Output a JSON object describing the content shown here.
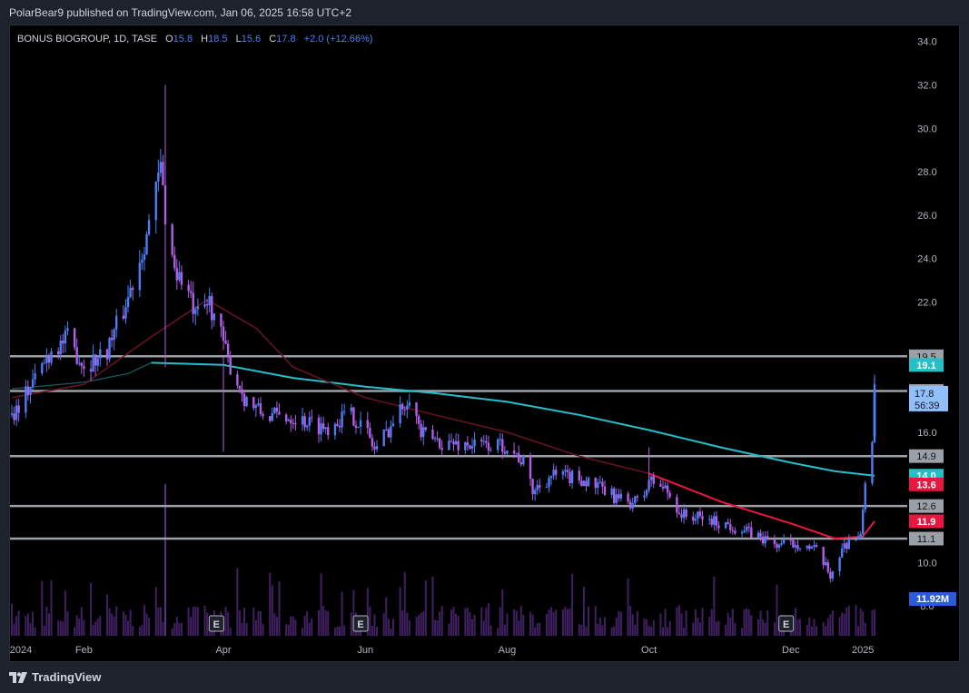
{
  "header": {
    "published": "PolarBear9 published on TradingView.com, Jan 06, 2025 16:58 UTC+2"
  },
  "footer": {
    "brand": "TradingView",
    "logo_icon": "tradingview-logo-icon"
  },
  "legend": {
    "symbol": "BONUS BIOGROUP, 1D, TASE",
    "o_label": "O",
    "o": "15.8",
    "h_label": "H",
    "h": "18.5",
    "l_label": "L",
    "l": "15.6",
    "c_label": "C",
    "c": "17.8",
    "change": "+2.0 (+12.66%)"
  },
  "colors": {
    "background": "#000000",
    "up": "#4c7ef6",
    "down": "#b25ee6",
    "ma_short": "#e8173f",
    "ma_long": "#26bfc8",
    "level": "#9aa0a6",
    "price_tag": "#90bff9",
    "volume": "#5a2f8a"
  },
  "chart_data": {
    "type": "candlestick",
    "symbol": "BONUS BIOGROUP",
    "interval": "1D",
    "exchange": "TASE",
    "ylim": [
      8,
      35
    ],
    "y_ticks": [
      "34.0",
      "32.0",
      "30.0",
      "28.0",
      "26.0",
      "24.0",
      "22.0",
      "16.0",
      "10.0",
      "8.0"
    ],
    "x_ticks": [
      {
        "label": "2024",
        "date": "2024-01-01"
      },
      {
        "label": "Feb",
        "date": "2024-02-01"
      },
      {
        "label": "Apr",
        "date": "2024-04-01"
      },
      {
        "label": "Jun",
        "date": "2024-06-01"
      },
      {
        "label": "Aug",
        "date": "2024-08-01"
      },
      {
        "label": "Oct",
        "date": "2024-10-01"
      },
      {
        "label": "Dec",
        "date": "2024-12-01"
      },
      {
        "label": "2025",
        "date": "2025-01-01"
      }
    ],
    "earnings_markers": [
      {
        "label": "E",
        "date": "2024-03-29"
      },
      {
        "label": "E",
        "date": "2024-05-30"
      },
      {
        "label": "E",
        "date": "2024-11-29"
      }
    ],
    "horizontal_levels": [
      19.5,
      17.9,
      14.9,
      12.6,
      11.1
    ],
    "level_labels": [
      "19.5",
      "17.9",
      "14.9",
      "12.6",
      "11.1"
    ],
    "price_tags": [
      {
        "label": "19.1",
        "value": 19.1,
        "color": "#26bfc8"
      },
      {
        "label": "14.0",
        "value": 14.0,
        "color": "#26bfc8"
      },
      {
        "label": "13.6",
        "value": 13.6,
        "color": "#e8173f"
      },
      {
        "label": "11.9",
        "value": 11.9,
        "color": "#e8173f"
      }
    ],
    "last_price": {
      "label": "17.8",
      "countdown": "56:39",
      "value": 17.8
    },
    "volume_tag": {
      "label": "11.92M"
    },
    "price_path": [
      {
        "date": "2024-01-01",
        "close": 16.8
      },
      {
        "date": "2024-01-10",
        "close": 18.3
      },
      {
        "date": "2024-01-18",
        "close": 19.8
      },
      {
        "date": "2024-01-25",
        "close": 20.3
      },
      {
        "date": "2024-02-01",
        "close": 19.1
      },
      {
        "date": "2024-02-10",
        "close": 19.6
      },
      {
        "date": "2024-02-18",
        "close": 21.6
      },
      {
        "date": "2024-02-24",
        "close": 23.6
      },
      {
        "date": "2024-03-01",
        "close": 26.0
      },
      {
        "date": "2024-03-05",
        "close": 28.2
      },
      {
        "date": "2024-03-08",
        "close": 25.0
      },
      {
        "date": "2024-03-12",
        "close": 23.3
      },
      {
        "date": "2024-03-16",
        "close": 22.8
      },
      {
        "date": "2024-03-20",
        "close": 21.2
      },
      {
        "date": "2024-03-26",
        "close": 22.0
      },
      {
        "date": "2024-03-30",
        "close": 20.8
      },
      {
        "date": "2024-04-03",
        "close": 19.3
      },
      {
        "date": "2024-04-10",
        "close": 17.6
      },
      {
        "date": "2024-04-18",
        "close": 16.8
      },
      {
        "date": "2024-05-01",
        "close": 16.7
      },
      {
        "date": "2024-05-15",
        "close": 16.2
      },
      {
        "date": "2024-05-25",
        "close": 16.9
      },
      {
        "date": "2024-06-01",
        "close": 16.2
      },
      {
        "date": "2024-06-05",
        "close": 15.2
      },
      {
        "date": "2024-06-15",
        "close": 16.8
      },
      {
        "date": "2024-06-20",
        "close": 17.8
      },
      {
        "date": "2024-06-25",
        "close": 15.9
      },
      {
        "date": "2024-07-05",
        "close": 15.5
      },
      {
        "date": "2024-07-20",
        "close": 15.4
      },
      {
        "date": "2024-08-01",
        "close": 15.4
      },
      {
        "date": "2024-08-08",
        "close": 14.6
      },
      {
        "date": "2024-08-12",
        "close": 13.3
      },
      {
        "date": "2024-08-20",
        "close": 14.0
      },
      {
        "date": "2024-09-01",
        "close": 13.9
      },
      {
        "date": "2024-09-10",
        "close": 13.4
      },
      {
        "date": "2024-09-20",
        "close": 12.8
      },
      {
        "date": "2024-09-28",
        "close": 12.8
      },
      {
        "date": "2024-10-01",
        "close": 13.8
      },
      {
        "date": "2024-10-08",
        "close": 13.4
      },
      {
        "date": "2024-10-15",
        "close": 12.2
      },
      {
        "date": "2024-10-25",
        "close": 12.0
      },
      {
        "date": "2024-11-05",
        "close": 11.7
      },
      {
        "date": "2024-11-15",
        "close": 11.3
      },
      {
        "date": "2024-11-25",
        "close": 10.8
      },
      {
        "date": "2024-12-05",
        "close": 10.9
      },
      {
        "date": "2024-12-12",
        "close": 10.5
      },
      {
        "date": "2024-12-18",
        "close": 9.4
      },
      {
        "date": "2024-12-23",
        "close": 10.6
      },
      {
        "date": "2024-12-27",
        "close": 11.2
      },
      {
        "date": "2024-12-31",
        "close": 11.1
      },
      {
        "date": "2025-01-02",
        "close": 13.8
      },
      {
        "date": "2025-01-05",
        "close": 15.8
      },
      {
        "date": "2025-01-06",
        "close": 17.8
      }
    ],
    "ma_long_path": [
      {
        "date": "2024-03-01",
        "value": 19.2
      },
      {
        "date": "2024-04-01",
        "value": 19.1
      },
      {
        "date": "2024-05-01",
        "value": 18.5
      },
      {
        "date": "2024-06-01",
        "value": 18.1
      },
      {
        "date": "2024-07-01",
        "value": 17.8
      },
      {
        "date": "2024-08-01",
        "value": 17.4
      },
      {
        "date": "2024-09-01",
        "value": 16.8
      },
      {
        "date": "2024-10-01",
        "value": 16.1
      },
      {
        "date": "2024-11-01",
        "value": 15.3
      },
      {
        "date": "2024-12-01",
        "value": 14.6
      },
      {
        "date": "2024-12-20",
        "value": 14.2
      },
      {
        "date": "2025-01-06",
        "value": 14.0
      }
    ],
    "ma_short_path": [
      {
        "date": "2024-01-01",
        "value": 17.6
      },
      {
        "date": "2024-02-01",
        "value": 18.2
      },
      {
        "date": "2024-03-01",
        "value": 20.4
      },
      {
        "date": "2024-03-25",
        "value": 22.1
      },
      {
        "date": "2024-04-15",
        "value": 20.8
      },
      {
        "date": "2024-05-01",
        "value": 19.0
      },
      {
        "date": "2024-06-01",
        "value": 17.6
      },
      {
        "date": "2024-07-01",
        "value": 16.8
      },
      {
        "date": "2024-08-01",
        "value": 16.0
      },
      {
        "date": "2024-09-01",
        "value": 14.9
      },
      {
        "date": "2024-10-01",
        "value": 14.1
      },
      {
        "date": "2024-11-01",
        "value": 12.8
      },
      {
        "date": "2024-12-01",
        "value": 11.8
      },
      {
        "date": "2024-12-20",
        "value": 11.1
      },
      {
        "date": "2025-01-01",
        "value": 11.2
      },
      {
        "date": "2025-01-06",
        "value": 11.9
      }
    ],
    "ma_long_prefix_path": [
      {
        "date": "2024-01-01",
        "value": 18.0
      },
      {
        "date": "2024-02-01",
        "value": 18.3
      },
      {
        "date": "2024-02-20",
        "value": 18.7
      },
      {
        "date": "2024-03-01",
        "value": 19.2
      }
    ]
  }
}
